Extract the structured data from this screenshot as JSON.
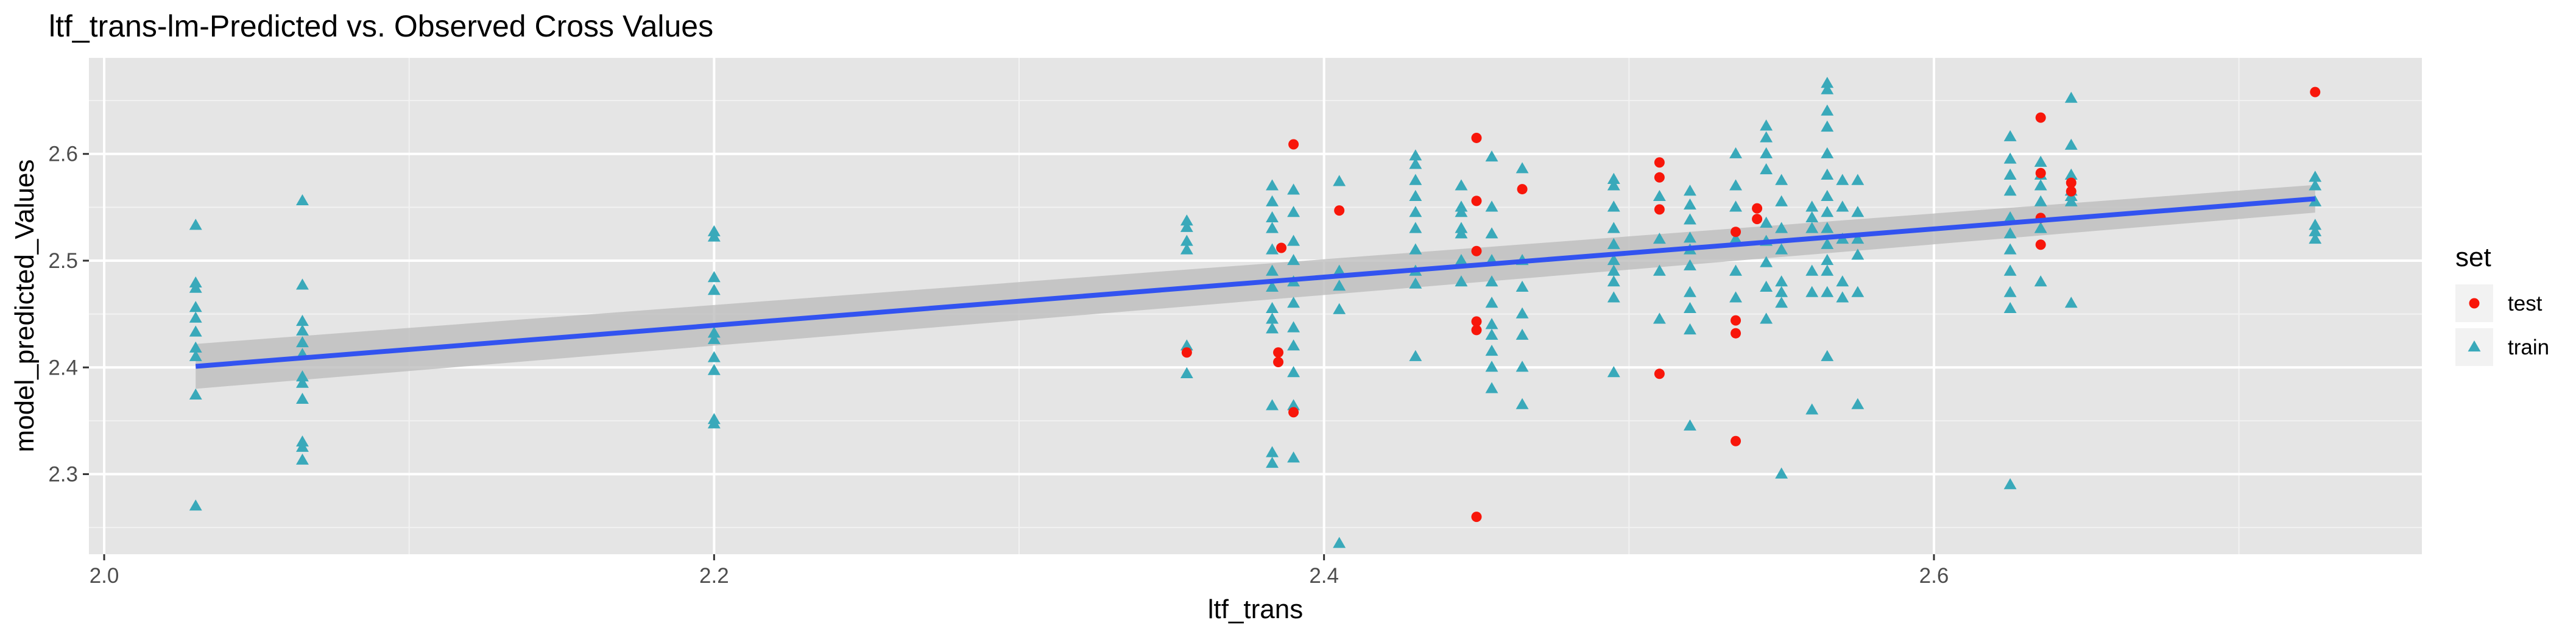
{
  "chart_data": {
    "type": "scatter",
    "title": "ltf_trans-lm-Predicted vs. Observed Cross Values",
    "xlabel": "ltf_trans",
    "ylabel": "model_predicted_Values",
    "xlim": [
      1.995,
      2.76
    ],
    "ylim": [
      2.225,
      2.69
    ],
    "x_ticks": [
      2.0,
      2.2,
      2.4,
      2.6
    ],
    "x_tick_labels": [
      "2.0",
      "2.2",
      "2.4",
      "2.6"
    ],
    "y_ticks": [
      2.3,
      2.4,
      2.5,
      2.6
    ],
    "y_tick_labels": [
      "2.3",
      "2.4",
      "2.5",
      "2.6"
    ],
    "grid": true,
    "legend": {
      "title": "set",
      "position": "right"
    },
    "series": [
      {
        "name": "test",
        "marker": "circle",
        "color": "#f8160a",
        "points": [
          [
            2.355,
            2.414
          ],
          [
            2.385,
            2.414
          ],
          [
            2.385,
            2.405
          ],
          [
            2.39,
            2.609
          ],
          [
            2.39,
            2.358
          ],
          [
            2.386,
            2.512
          ],
          [
            2.405,
            2.547
          ],
          [
            2.45,
            2.615
          ],
          [
            2.45,
            2.556
          ],
          [
            2.45,
            2.509
          ],
          [
            2.45,
            2.443
          ],
          [
            2.45,
            2.435
          ],
          [
            2.45,
            2.26
          ],
          [
            2.465,
            2.567
          ],
          [
            2.51,
            2.592
          ],
          [
            2.51,
            2.578
          ],
          [
            2.51,
            2.548
          ],
          [
            2.51,
            2.394
          ],
          [
            2.535,
            2.527
          ],
          [
            2.535,
            2.444
          ],
          [
            2.535,
            2.432
          ],
          [
            2.535,
            2.331
          ],
          [
            2.542,
            2.549
          ],
          [
            2.542,
            2.539
          ],
          [
            2.635,
            2.634
          ],
          [
            2.635,
            2.582
          ],
          [
            2.635,
            2.54
          ],
          [
            2.635,
            2.515
          ],
          [
            2.645,
            2.573
          ],
          [
            2.645,
            2.565
          ],
          [
            2.725,
            2.658
          ]
        ]
      },
      {
        "name": "train",
        "marker": "triangle",
        "color": "#39a9ba",
        "points": [
          [
            2.03,
            2.533
          ],
          [
            2.03,
            2.479
          ],
          [
            2.03,
            2.474
          ],
          [
            2.03,
            2.456
          ],
          [
            2.03,
            2.446
          ],
          [
            2.03,
            2.433
          ],
          [
            2.03,
            2.418
          ],
          [
            2.03,
            2.41
          ],
          [
            2.03,
            2.374
          ],
          [
            2.03,
            2.27
          ],
          [
            2.065,
            2.556
          ],
          [
            2.065,
            2.477
          ],
          [
            2.065,
            2.443
          ],
          [
            2.065,
            2.434
          ],
          [
            2.065,
            2.423
          ],
          [
            2.065,
            2.412
          ],
          [
            2.065,
            2.391
          ],
          [
            2.065,
            2.385
          ],
          [
            2.065,
            2.37
          ],
          [
            2.065,
            2.33
          ],
          [
            2.065,
            2.325
          ],
          [
            2.065,
            2.313
          ],
          [
            2.2,
            2.527
          ],
          [
            2.2,
            2.522
          ],
          [
            2.2,
            2.484
          ],
          [
            2.2,
            2.472
          ],
          [
            2.2,
            2.432
          ],
          [
            2.2,
            2.426
          ],
          [
            2.2,
            2.409
          ],
          [
            2.2,
            2.397
          ],
          [
            2.2,
            2.351
          ],
          [
            2.2,
            2.347
          ],
          [
            2.355,
            2.537
          ],
          [
            2.355,
            2.531
          ],
          [
            2.355,
            2.518
          ],
          [
            2.355,
            2.51
          ],
          [
            2.355,
            2.42
          ],
          [
            2.355,
            2.394
          ],
          [
            2.383,
            2.57
          ],
          [
            2.383,
            2.555
          ],
          [
            2.383,
            2.54
          ],
          [
            2.383,
            2.53
          ],
          [
            2.383,
            2.51
          ],
          [
            2.383,
            2.49
          ],
          [
            2.383,
            2.475
          ],
          [
            2.383,
            2.455
          ],
          [
            2.383,
            2.445
          ],
          [
            2.383,
            2.436
          ],
          [
            2.383,
            2.364
          ],
          [
            2.383,
            2.32
          ],
          [
            2.383,
            2.31
          ],
          [
            2.39,
            2.566
          ],
          [
            2.39,
            2.545
          ],
          [
            2.39,
            2.518
          ],
          [
            2.39,
            2.5
          ],
          [
            2.39,
            2.48
          ],
          [
            2.39,
            2.46
          ],
          [
            2.39,
            2.437
          ],
          [
            2.39,
            2.42
          ],
          [
            2.39,
            2.395
          ],
          [
            2.39,
            2.364
          ],
          [
            2.39,
            2.315
          ],
          [
            2.405,
            2.574
          ],
          [
            2.405,
            2.49
          ],
          [
            2.405,
            2.476
          ],
          [
            2.405,
            2.454
          ],
          [
            2.405,
            2.235
          ],
          [
            2.43,
            2.598
          ],
          [
            2.43,
            2.59
          ],
          [
            2.43,
            2.575
          ],
          [
            2.43,
            2.56
          ],
          [
            2.43,
            2.545
          ],
          [
            2.43,
            2.53
          ],
          [
            2.43,
            2.51
          ],
          [
            2.43,
            2.49
          ],
          [
            2.43,
            2.478
          ],
          [
            2.43,
            2.41
          ],
          [
            2.445,
            2.57
          ],
          [
            2.445,
            2.55
          ],
          [
            2.445,
            2.545
          ],
          [
            2.445,
            2.53
          ],
          [
            2.445,
            2.525
          ],
          [
            2.445,
            2.5
          ],
          [
            2.445,
            2.48
          ],
          [
            2.455,
            2.597
          ],
          [
            2.455,
            2.55
          ],
          [
            2.455,
            2.525
          ],
          [
            2.455,
            2.5
          ],
          [
            2.455,
            2.48
          ],
          [
            2.455,
            2.46
          ],
          [
            2.455,
            2.44
          ],
          [
            2.455,
            2.43
          ],
          [
            2.455,
            2.415
          ],
          [
            2.455,
            2.4
          ],
          [
            2.455,
            2.38
          ],
          [
            2.465,
            2.586
          ],
          [
            2.465,
            2.5
          ],
          [
            2.465,
            2.475
          ],
          [
            2.465,
            2.45
          ],
          [
            2.465,
            2.43
          ],
          [
            2.465,
            2.4
          ],
          [
            2.465,
            2.365
          ],
          [
            2.495,
            2.576
          ],
          [
            2.495,
            2.57
          ],
          [
            2.495,
            2.55
          ],
          [
            2.495,
            2.53
          ],
          [
            2.495,
            2.515
          ],
          [
            2.495,
            2.5
          ],
          [
            2.495,
            2.49
          ],
          [
            2.495,
            2.48
          ],
          [
            2.495,
            2.465
          ],
          [
            2.495,
            2.395
          ],
          [
            2.51,
            2.56
          ],
          [
            2.51,
            2.52
          ],
          [
            2.51,
            2.49
          ],
          [
            2.51,
            2.445
          ],
          [
            2.52,
            2.565
          ],
          [
            2.52,
            2.552
          ],
          [
            2.52,
            2.538
          ],
          [
            2.52,
            2.521
          ],
          [
            2.52,
            2.51
          ],
          [
            2.52,
            2.495
          ],
          [
            2.52,
            2.47
          ],
          [
            2.52,
            2.455
          ],
          [
            2.52,
            2.435
          ],
          [
            2.52,
            2.345
          ],
          [
            2.535,
            2.6
          ],
          [
            2.535,
            2.57
          ],
          [
            2.535,
            2.55
          ],
          [
            2.535,
            2.52
          ],
          [
            2.535,
            2.49
          ],
          [
            2.535,
            2.465
          ],
          [
            2.545,
            2.626
          ],
          [
            2.545,
            2.615
          ],
          [
            2.545,
            2.6
          ],
          [
            2.545,
            2.585
          ],
          [
            2.545,
            2.535
          ],
          [
            2.545,
            2.518
          ],
          [
            2.545,
            2.498
          ],
          [
            2.545,
            2.475
          ],
          [
            2.545,
            2.445
          ],
          [
            2.55,
            2.575
          ],
          [
            2.55,
            2.555
          ],
          [
            2.55,
            2.53
          ],
          [
            2.55,
            2.51
          ],
          [
            2.55,
            2.48
          ],
          [
            2.55,
            2.47
          ],
          [
            2.55,
            2.46
          ],
          [
            2.55,
            2.3
          ],
          [
            2.56,
            2.55
          ],
          [
            2.56,
            2.54
          ],
          [
            2.56,
            2.53
          ],
          [
            2.56,
            2.49
          ],
          [
            2.56,
            2.47
          ],
          [
            2.56,
            2.36
          ],
          [
            2.565,
            2.666
          ],
          [
            2.565,
            2.66
          ],
          [
            2.565,
            2.64
          ],
          [
            2.565,
            2.625
          ],
          [
            2.565,
            2.6
          ],
          [
            2.565,
            2.58
          ],
          [
            2.565,
            2.56
          ],
          [
            2.565,
            2.545
          ],
          [
            2.565,
            2.53
          ],
          [
            2.565,
            2.515
          ],
          [
            2.565,
            2.5
          ],
          [
            2.565,
            2.49
          ],
          [
            2.565,
            2.47
          ],
          [
            2.565,
            2.41
          ],
          [
            2.57,
            2.575
          ],
          [
            2.57,
            2.55
          ],
          [
            2.57,
            2.52
          ],
          [
            2.57,
            2.48
          ],
          [
            2.57,
            2.465
          ],
          [
            2.575,
            2.575
          ],
          [
            2.575,
            2.545
          ],
          [
            2.575,
            2.52
          ],
          [
            2.575,
            2.505
          ],
          [
            2.575,
            2.47
          ],
          [
            2.575,
            2.365
          ],
          [
            2.625,
            2.616
          ],
          [
            2.625,
            2.595
          ],
          [
            2.625,
            2.58
          ],
          [
            2.625,
            2.565
          ],
          [
            2.625,
            2.54
          ],
          [
            2.625,
            2.525
          ],
          [
            2.625,
            2.51
          ],
          [
            2.625,
            2.49
          ],
          [
            2.625,
            2.47
          ],
          [
            2.625,
            2.455
          ],
          [
            2.625,
            2.29
          ],
          [
            2.635,
            2.592
          ],
          [
            2.635,
            2.58
          ],
          [
            2.635,
            2.57
          ],
          [
            2.635,
            2.555
          ],
          [
            2.635,
            2.53
          ],
          [
            2.635,
            2.48
          ],
          [
            2.645,
            2.652
          ],
          [
            2.645,
            2.608
          ],
          [
            2.645,
            2.58
          ],
          [
            2.645,
            2.565
          ],
          [
            2.645,
            2.56
          ],
          [
            2.645,
            2.555
          ],
          [
            2.645,
            2.46
          ],
          [
            2.725,
            2.578
          ],
          [
            2.725,
            2.57
          ],
          [
            2.725,
            2.555
          ],
          [
            2.725,
            2.533
          ],
          [
            2.725,
            2.527
          ],
          [
            2.725,
            2.52
          ]
        ]
      }
    ],
    "fit": {
      "type": "line",
      "method": "lm",
      "color": "#3253f0",
      "band_color": "#bdbdbd",
      "x": [
        2.03,
        2.725
      ],
      "y": [
        2.401,
        2.558
      ],
      "ci_halfwidth": [
        0.021,
        0.013
      ]
    }
  }
}
